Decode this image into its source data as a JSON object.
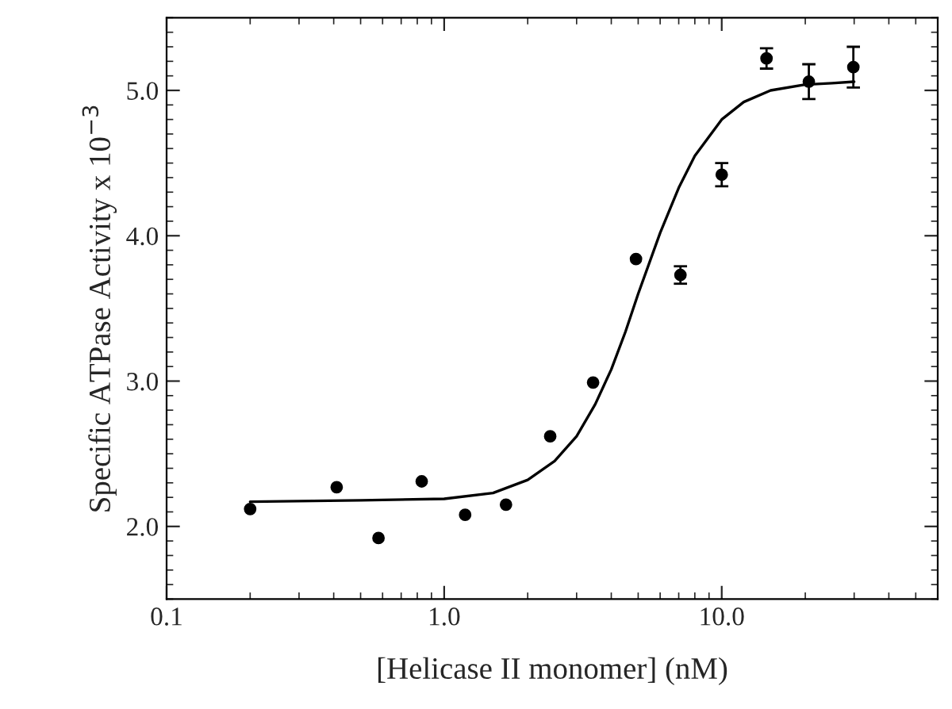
{
  "chart_data": {
    "type": "scatter",
    "xlabel": "[Helicase II monomer] (nM)",
    "ylabel": "Specific ATPase Activity x 10$^{−3}$",
    "log": "x",
    "xlim": [
      0.1,
      60
    ],
    "ylim": [
      1.5,
      5.5
    ],
    "xticks": [
      {
        "value": 0.1,
        "label": "0.1"
      },
      {
        "value": 1,
        "label": "1.0"
      },
      {
        "value": 10,
        "label": "10.0"
      }
    ],
    "yticks": [
      {
        "value": 2,
        "label": "2.0"
      },
      {
        "value": 3,
        "label": "3.0"
      },
      {
        "value": 4,
        "label": "4.0"
      },
      {
        "value": 5,
        "label": "5.0"
      }
    ],
    "grid": false,
    "legend": false,
    "series": [
      {
        "color": "#000000",
        "marker": "circle",
        "x": [
          0.2,
          0.41,
          0.58,
          0.83,
          1.19,
          1.67,
          2.41,
          3.44,
          4.91,
          7.1,
          10,
          14.5,
          20.6,
          29.8
        ],
        "values": [
          2.12,
          2.27,
          1.92,
          2.31,
          2.08,
          2.15,
          2.62,
          2.99,
          3.84,
          3.73,
          4.42,
          5.22,
          5.06,
          5.16
        ],
        "errors": [
          null,
          null,
          null,
          null,
          null,
          null,
          null,
          null,
          null,
          0.06,
          0.08,
          0.07,
          0.12,
          0.14
        ]
      },
      {
        "type": "line",
        "color": "#000000",
        "marker": "none",
        "line_style": "solid",
        "x": [
          0.2,
          0.5,
          1.0,
          1.5,
          2.0,
          2.5,
          3.0,
          3.5,
          4.0,
          4.5,
          5.0,
          6.0,
          7.0,
          8.0,
          10,
          12,
          15,
          20,
          25,
          30
        ],
        "values": [
          2.17,
          2.18,
          2.19,
          2.23,
          2.32,
          2.45,
          2.62,
          2.84,
          3.08,
          3.34,
          3.6,
          4.02,
          4.33,
          4.55,
          4.8,
          4.92,
          5.0,
          5.04,
          5.05,
          5.06
        ]
      }
    ]
  }
}
